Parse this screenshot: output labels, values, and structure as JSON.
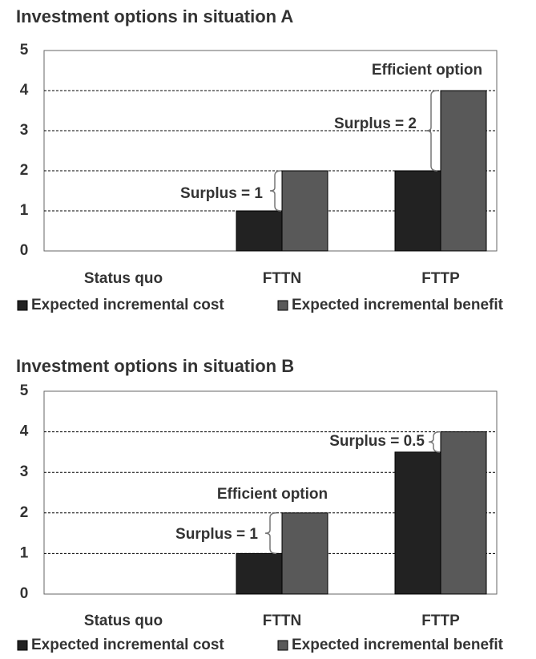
{
  "chart_data": [
    {
      "type": "bar",
      "title": "Investment options in situation A",
      "categories": [
        "Status quo",
        "FTTN",
        "FTTP"
      ],
      "series": [
        {
          "name": "Expected incremental cost",
          "color": "#222222",
          "values": [
            0,
            1,
            2
          ]
        },
        {
          "name": "Expected incremental benefit",
          "color": "#595959",
          "values": [
            0,
            2,
            4
          ]
        }
      ],
      "ylim": [
        0,
        5
      ],
      "yticks": [
        0,
        1,
        2,
        3,
        4,
        5
      ],
      "grid": true,
      "legend": "bottom",
      "annotations": [
        "Efficient option",
        "Surplus = 2",
        "Surplus = 1"
      ]
    },
    {
      "type": "bar",
      "title": "Investment options in situation B",
      "categories": [
        "Status quo",
        "FTTN",
        "FTTP"
      ],
      "series": [
        {
          "name": "Expected incremental cost",
          "color": "#222222",
          "values": [
            0,
            1,
            3.5
          ]
        },
        {
          "name": "Expected incremental benefit",
          "color": "#595959",
          "values": [
            0,
            2,
            4
          ]
        }
      ],
      "ylim": [
        0,
        5
      ],
      "yticks": [
        0,
        1,
        2,
        3,
        4,
        5
      ],
      "grid": true,
      "legend": "bottom",
      "annotations": [
        "Surplus = 0.5",
        "Efficient option",
        "Surplus = 1"
      ]
    }
  ]
}
